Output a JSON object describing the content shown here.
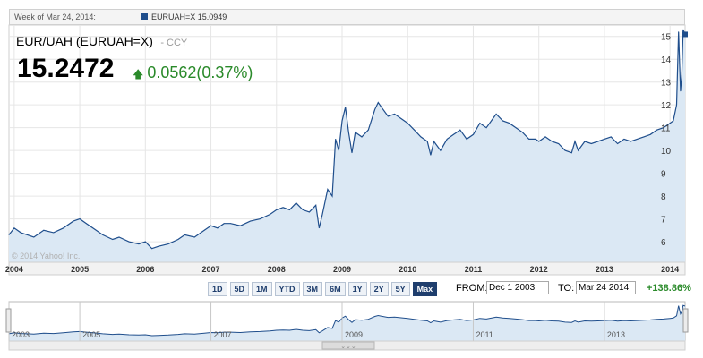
{
  "header": {
    "week_label": "Week of Mar 24, 2014:",
    "legend_label": "EURUAH=X 15.0949",
    "legend_color": "#1f4e8c"
  },
  "quote": {
    "name": "EUR/UAH (EURUAH=X)",
    "sep": "-",
    "ccy": "CCY",
    "last": "15.2472",
    "arrow": "up-arrow-icon",
    "change": "0.0562(0.37%)",
    "change_color": "#2a8a2a"
  },
  "controls": {
    "ranges": [
      "1D",
      "5D",
      "1M",
      "YTD",
      "3M",
      "6M",
      "1Y",
      "2Y",
      "5Y",
      "Max"
    ],
    "active_range": "Max",
    "from_label": "FROM:",
    "from_value": "Dec 1 2003",
    "to_label": "TO:",
    "to_value": "Mar 24 2014",
    "period_change": "+138.86%"
  },
  "watermark": "© 2014 Yahoo! Inc.",
  "chart_data": {
    "type": "area",
    "series": [
      {
        "name": "EURUAH=X",
        "x": [
          2003.92,
          2004.0,
          2004.1,
          2004.2,
          2004.3,
          2004.45,
          2004.6,
          2004.75,
          2004.9,
          2005.0,
          2005.1,
          2005.2,
          2005.35,
          2005.5,
          2005.6,
          2005.75,
          2005.9,
          2006.0,
          2006.1,
          2006.2,
          2006.35,
          2006.5,
          2006.6,
          2006.75,
          2006.9,
          2007.0,
          2007.1,
          2007.2,
          2007.3,
          2007.45,
          2007.6,
          2007.75,
          2007.9,
          2008.0,
          2008.1,
          2008.2,
          2008.3,
          2008.4,
          2008.5,
          2008.6,
          2008.65,
          2008.7,
          2008.78,
          2008.85,
          2008.9,
          2008.95,
          2009.0,
          2009.05,
          2009.1,
          2009.15,
          2009.2,
          2009.3,
          2009.4,
          2009.5,
          2009.55,
          2009.6,
          2009.7,
          2009.8,
          2009.9,
          2010.0,
          2010.1,
          2010.2,
          2010.3,
          2010.35,
          2010.4,
          2010.5,
          2010.6,
          2010.7,
          2010.8,
          2010.9,
          2011.0,
          2011.1,
          2011.2,
          2011.3,
          2011.35,
          2011.45,
          2011.55,
          2011.65,
          2011.75,
          2011.85,
          2011.95,
          2012.0,
          2012.1,
          2012.2,
          2012.3,
          2012.4,
          2012.5,
          2012.55,
          2012.6,
          2012.7,
          2012.8,
          2012.9,
          2013.0,
          2013.1,
          2013.2,
          2013.3,
          2013.4,
          2013.5,
          2013.6,
          2013.7,
          2013.8,
          2013.9,
          2014.0,
          2014.05,
          2014.1,
          2014.13,
          2014.16,
          2014.18,
          2014.2,
          2014.23
        ],
        "values": [
          6.3,
          6.6,
          6.4,
          6.3,
          6.2,
          6.5,
          6.4,
          6.6,
          6.9,
          7.0,
          6.8,
          6.6,
          6.3,
          6.1,
          6.2,
          6.0,
          5.9,
          6.0,
          5.7,
          5.8,
          5.9,
          6.1,
          6.3,
          6.2,
          6.5,
          6.7,
          6.6,
          6.8,
          6.8,
          6.7,
          6.9,
          7.0,
          7.2,
          7.4,
          7.5,
          7.4,
          7.7,
          7.4,
          7.3,
          7.6,
          6.6,
          7.2,
          8.3,
          8.0,
          10.5,
          10.0,
          11.3,
          11.9,
          10.8,
          9.9,
          10.8,
          10.6,
          10.9,
          11.8,
          12.1,
          11.9,
          11.5,
          11.6,
          11.4,
          11.2,
          10.9,
          10.6,
          10.4,
          9.8,
          10.4,
          10.0,
          10.5,
          10.7,
          10.9,
          10.5,
          10.7,
          11.2,
          11.0,
          11.4,
          11.6,
          11.3,
          11.2,
          11.0,
          10.8,
          10.5,
          10.5,
          10.4,
          10.6,
          10.4,
          10.3,
          10.0,
          9.9,
          10.4,
          10.0,
          10.4,
          10.3,
          10.4,
          10.5,
          10.6,
          10.3,
          10.5,
          10.4,
          10.5,
          10.6,
          10.7,
          10.9,
          11.0,
          11.2,
          11.3,
          12.0,
          15.2,
          12.6,
          13.3,
          15.3,
          15.09
        ]
      }
    ],
    "xlabel": "",
    "ylabel": "",
    "x_ticks": [
      "2004",
      "2005",
      "2006",
      "2007",
      "2008",
      "2009",
      "2010",
      "2011",
      "2012",
      "2013",
      "2014"
    ],
    "x_tick_values": [
      2004,
      2005,
      2006,
      2007,
      2008,
      2009,
      2010,
      2011,
      2012,
      2013,
      2014
    ],
    "y_ticks": [
      6,
      7,
      8,
      9,
      10,
      11,
      12,
      13,
      14,
      15
    ],
    "xlim": [
      2003.92,
      2014.23
    ],
    "ylim": [
      5.1,
      15.5
    ],
    "grid": true,
    "line_color": "#1f4e8c",
    "fill_color": "#dbe8f4",
    "navigator": {
      "labels": [
        "2003",
        "2005",
        "2007",
        "2009",
        "2011",
        "2013"
      ],
      "label_values": [
        2003.92,
        2005,
        2007,
        2009,
        2011,
        2013
      ],
      "ylim": [
        4,
        16.5
      ]
    }
  }
}
